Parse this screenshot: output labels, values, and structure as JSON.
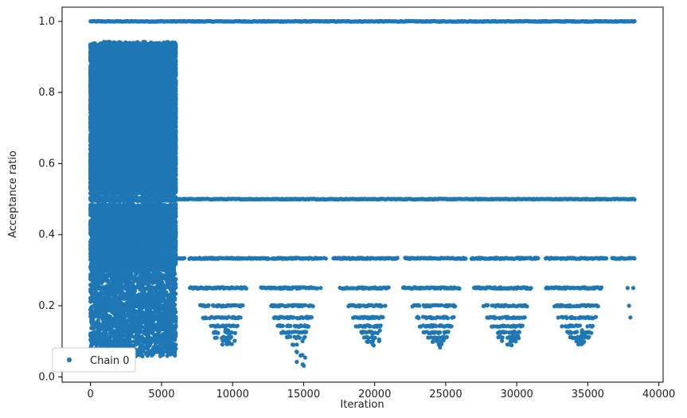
{
  "chart_data": {
    "type": "scatter",
    "xlabel": "Iteration",
    "ylabel": "Acceptance ratio",
    "xlim": [
      -2000,
      40300
    ],
    "ylim": [
      -0.015,
      1.04
    ],
    "xticks": [
      0,
      5000,
      10000,
      15000,
      20000,
      25000,
      30000,
      35000,
      40000
    ],
    "xtick_labels": [
      "0",
      "5000",
      "10000",
      "15000",
      "20000",
      "25000",
      "30000",
      "35000",
      "40000"
    ],
    "yticks": [
      0.0,
      0.2,
      0.4,
      0.6,
      0.8,
      1.0
    ],
    "ytick_labels": [
      "0.0",
      "0.2",
      "0.4",
      "0.6",
      "0.8",
      "1.0"
    ],
    "grid": false,
    "legend_position": "lower-left",
    "series": [
      {
        "name": "Chain 0",
        "color": "#1f77b4",
        "marker": "dot",
        "segments": [
          {
            "y": 1.0,
            "x_start": 0,
            "x_end": 38300,
            "style": "continuous"
          },
          {
            "y": 0.5,
            "x_start": 0,
            "x_end": 38300,
            "style": "continuous"
          },
          {
            "y": 0.333,
            "x_start": 0,
            "x_end": 38300,
            "style": "dense-after-6000"
          },
          {
            "y": 0.25,
            "x_start": 0,
            "x_end": 38300,
            "style": "clustered"
          },
          {
            "y": 0.2,
            "x_start": 0,
            "x_end": 36000,
            "style": "clustered"
          }
        ],
        "early_band": {
          "x_start": 0,
          "x_end": 6000,
          "y_min": 0.06,
          "y_max": 0.94
        },
        "clusters": [
          {
            "x_start": 7000,
            "x_end": 11000,
            "y_min": 0.085
          },
          {
            "x_start": 12000,
            "x_end": 16000,
            "y_min": 0.03
          },
          {
            "x_start": 17500,
            "x_end": 21000,
            "y_min": 0.085
          },
          {
            "x_start": 22000,
            "x_end": 26000,
            "y_min": 0.08
          },
          {
            "x_start": 27000,
            "x_end": 31000,
            "y_min": 0.08
          },
          {
            "x_start": 32000,
            "x_end": 36000,
            "y_min": 0.09
          }
        ]
      }
    ]
  }
}
